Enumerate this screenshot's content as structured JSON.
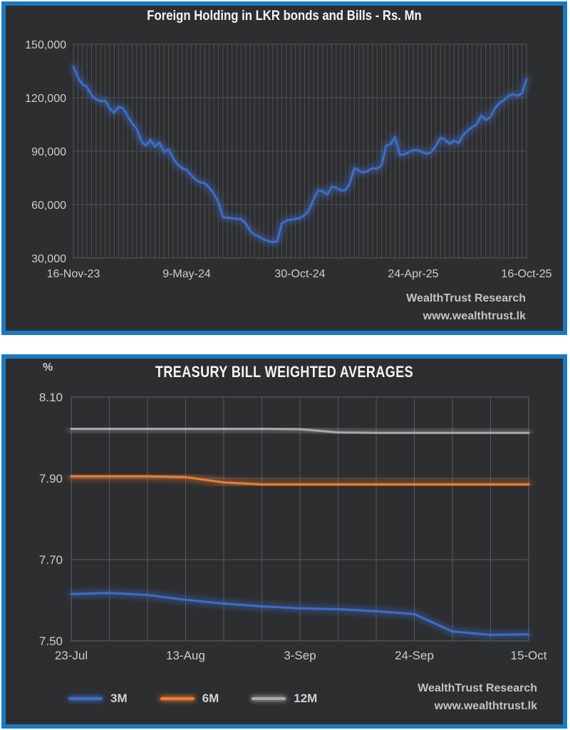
{
  "page": {
    "background_color": "#ffffff",
    "panel_background_color": "#2d2e30",
    "panel_border_color": "#1b79c2"
  },
  "charts": [
    {
      "title": "Foreign Holding in LKR bonds and Bills - Rs. Mn",
      "footer": {
        "line1": "WealthTrust Research",
        "line2": "www.wealthtrust.lk"
      },
      "chart_data": {
        "type": "line",
        "title": "Foreign Holding in LKR bonds and Bills - Rs. Mn",
        "xlabel": "",
        "ylabel": "Rs. Mn",
        "ylim": [
          30000,
          150000
        ],
        "y_ticks": [
          150000,
          120000,
          90000,
          60000,
          30000
        ],
        "y_tick_labels": [
          "150,000",
          "120,000",
          "90,000",
          "60,000",
          "30,000"
        ],
        "x_tick_labels": [
          "16-Nov-23",
          "9-May-24",
          "30-Oct-24",
          "24-Apr-25",
          "16-Oct-25"
        ],
        "x_frequency": "weekly",
        "grid": "on",
        "grid_color": "#4f5053",
        "legend_position": "none",
        "series": [
          {
            "name": "Foreign Holding",
            "color": "#3e6cc8",
            "values": [
              137500,
              131500,
              127500,
              126000,
              121500,
              119000,
              118000,
              118500,
              114000,
              111500,
              115000,
              114000,
              109500,
              105500,
              102500,
              95500,
              93000,
              96500,
              92500,
              95000,
              89500,
              91000,
              86000,
              82500,
              80500,
              79500,
              76500,
              74000,
              72500,
              72000,
              69500,
              66000,
              61500,
              53000,
              52500,
              52500,
              52000,
              52000,
              49500,
              45500,
              43000,
              42000,
              40500,
              39500,
              39000,
              39500,
              49500,
              51000,
              51500,
              52000,
              52500,
              54000,
              57000,
              63000,
              68000,
              67500,
              65500,
              70000,
              69500,
              68000,
              68000,
              72000,
              80500,
              79000,
              78000,
              79000,
              80500,
              80000,
              82000,
              93000,
              94000,
              98000,
              88000,
              88000,
              89500,
              90500,
              90500,
              89500,
              88500,
              89500,
              93000,
              97500,
              96500,
              94000,
              96000,
              94500,
              99000,
              101500,
              103500,
              105000,
              110000,
              107500,
              109000,
              114000,
              117000,
              118500,
              121000,
              122000,
              121000,
              122500,
              130500
            ]
          }
        ]
      }
    },
    {
      "title": "TREASURY BILL WEIGHTED AVERAGES",
      "y_axis_unit": "%",
      "footer": {
        "line1": "WealthTrust Research",
        "line2": "www.wealthtrust.lk"
      },
      "chart_data": {
        "type": "line",
        "title": "TREASURY BILL WEIGHTED AVERAGES",
        "xlabel": "",
        "ylabel": "%",
        "ylim": [
          7.5,
          8.1
        ],
        "y_ticks": [
          8.1,
          7.9,
          7.7,
          7.5
        ],
        "y_tick_labels": [
          "8.10",
          "7.90",
          "7.70",
          "7.50"
        ],
        "x_tick_labels": [
          "23-Jul",
          "13-Aug",
          "3-Sep",
          "24-Sep",
          "15-Oct"
        ],
        "x_frequency": "weekly",
        "grid": "on",
        "grid_color": "#595a5d",
        "legend_position": "bottom-left",
        "legend": [
          "3M",
          "6M",
          "12M"
        ],
        "series": [
          {
            "name": "3M",
            "color": "#3e6cc8",
            "values": [
              7.615,
              7.618,
              7.613,
              7.601,
              7.592,
              7.585,
              7.58,
              7.578,
              7.573,
              7.566,
              7.523,
              7.515,
              7.516
            ]
          },
          {
            "name": "6M",
            "color": "#ed7d31",
            "values": [
              7.905,
              7.905,
              7.905,
              7.903,
              7.89,
              7.885,
              7.885,
              7.885,
              7.885,
              7.885,
              7.885,
              7.885,
              7.885
            ]
          },
          {
            "name": "12M",
            "color": "#a8a9ab",
            "values": [
              8.022,
              8.022,
              8.022,
              8.022,
              8.022,
              8.022,
              8.021,
              8.013,
              8.012,
              8.012,
              8.012,
              8.012,
              8.012
            ]
          }
        ]
      }
    }
  ]
}
